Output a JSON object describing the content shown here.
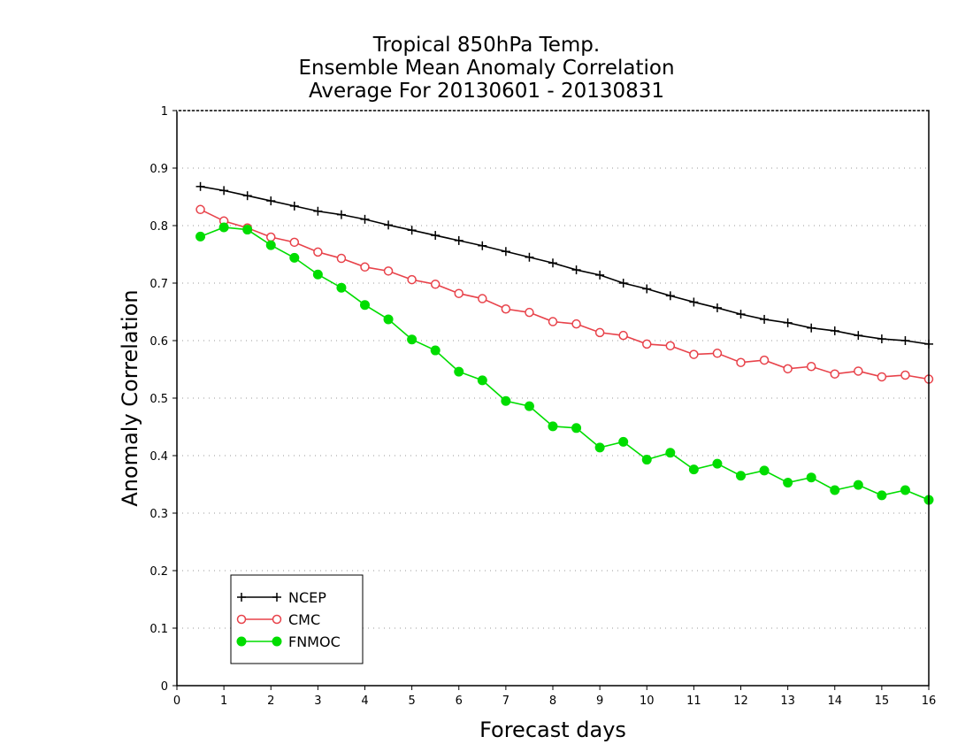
{
  "chart_data": {
    "type": "line",
    "title_lines": [
      "Tropical 850hPa Temp.",
      "Ensemble Mean Anomaly Correlation",
      "Average For 20130601 - 20130831"
    ],
    "xlabel": "Forecast days",
    "ylabel": "Anomaly Correlation",
    "xlim": [
      0,
      16
    ],
    "ylim": [
      0,
      1
    ],
    "x_ticks": [
      0,
      1,
      2,
      3,
      4,
      5,
      6,
      7,
      8,
      9,
      10,
      11,
      12,
      13,
      14,
      15,
      16
    ],
    "x_tick_labels": [
      "0",
      "1",
      "2",
      "3",
      "4",
      "5",
      "6",
      "7",
      "8",
      "9",
      "10",
      "11",
      "12",
      "13",
      "14",
      "15",
      "16"
    ],
    "y_ticks": [
      0,
      0.1,
      0.2,
      0.3,
      0.4,
      0.5,
      0.6,
      0.7,
      0.8,
      0.9,
      1
    ],
    "y_tick_labels": [
      "0",
      "0.1",
      "0.2",
      "0.3",
      "0.4",
      "0.5",
      "0.6",
      "0.7",
      "0.8",
      "0.9",
      "1"
    ],
    "grid": "horizontal dotted",
    "legend_position": "bottom-left",
    "x": [
      0.5,
      1,
      1.5,
      2,
      2.5,
      3,
      3.5,
      4,
      4.5,
      5,
      5.5,
      6,
      6.5,
      7,
      7.5,
      8,
      8.5,
      9,
      9.5,
      10,
      10.5,
      11,
      11.5,
      12,
      12.5,
      13,
      13.5,
      14,
      14.5,
      15,
      15.5,
      16
    ],
    "series": [
      {
        "name": "NCEP",
        "color": "#000000",
        "marker": "plus",
        "values": [
          0.868,
          0.861,
          0.852,
          0.843,
          0.834,
          0.825,
          0.819,
          0.811,
          0.801,
          0.792,
          0.783,
          0.774,
          0.765,
          0.755,
          0.745,
          0.735,
          0.723,
          0.714,
          0.7,
          0.69,
          0.678,
          0.667,
          0.657,
          0.646,
          0.637,
          0.631,
          0.622,
          0.617,
          0.609,
          0.603,
          0.6,
          0.594
        ]
      },
      {
        "name": "CMC",
        "color": "#e8424a",
        "marker": "open-circle",
        "values": [
          0.828,
          0.808,
          0.796,
          0.78,
          0.771,
          0.754,
          0.743,
          0.728,
          0.721,
          0.706,
          0.698,
          0.682,
          0.673,
          0.655,
          0.649,
          0.633,
          0.629,
          0.614,
          0.609,
          0.594,
          0.591,
          0.576,
          0.578,
          0.562,
          0.566,
          0.551,
          0.555,
          0.542,
          0.547,
          0.537,
          0.54,
          0.533
        ]
      },
      {
        "name": "FNMOC",
        "color": "#00dd00",
        "marker": "filled-circle",
        "values": [
          0.781,
          0.797,
          0.793,
          0.766,
          0.744,
          0.715,
          0.692,
          0.662,
          0.637,
          0.602,
          0.583,
          0.546,
          0.531,
          0.495,
          0.486,
          0.451,
          0.448,
          0.414,
          0.424,
          0.393,
          0.405,
          0.376,
          0.386,
          0.365,
          0.374,
          0.353,
          0.362,
          0.34,
          0.349,
          0.331,
          0.34,
          0.323
        ]
      }
    ]
  }
}
